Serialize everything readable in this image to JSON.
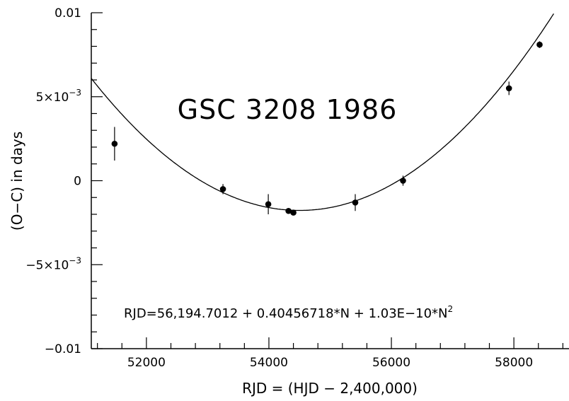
{
  "chart_data": {
    "type": "scatter",
    "annotation": "GSC 3208 1986",
    "equation": {
      "base": "RJD=56,194.7012 + 0.40456718*N + 1.03E−10*N",
      "sup": "2"
    },
    "xlabel": "RJD = (HJD − 2,400,000)",
    "ylabel": "(O−C) in days",
    "xlim": [
      51100,
      58900
    ],
    "ylim": [
      -0.01,
      0.01
    ],
    "xticks": [
      {
        "value": 52000,
        "label": "52000"
      },
      {
        "value": 54000,
        "label": "54000"
      },
      {
        "value": 56000,
        "label": "56000"
      },
      {
        "value": 58000,
        "label": "58000"
      }
    ],
    "yticks": [
      {
        "value": 0.01,
        "label": "0.01",
        "exp": ""
      },
      {
        "value": 0.005,
        "label": "5×10",
        "exp": "−3"
      },
      {
        "value": 0,
        "label": "0",
        "exp": ""
      },
      {
        "value": -0.005,
        "label": "−5×10",
        "exp": "−3"
      },
      {
        "value": -0.01,
        "label": "−0.01",
        "exp": ""
      }
    ],
    "points": [
      {
        "x": 51480,
        "y": 0.0022,
        "err": 0.001
      },
      {
        "x": 53250,
        "y": -0.0005,
        "err": 0.0003
      },
      {
        "x": 53990,
        "y": -0.0014,
        "err": 0.0006
      },
      {
        "x": 54320,
        "y": -0.0018,
        "err": 0.0
      },
      {
        "x": 54400,
        "y": -0.0019,
        "err": 0.0
      },
      {
        "x": 55410,
        "y": -0.0013,
        "err": 0.0005
      },
      {
        "x": 56190,
        "y": 0.0,
        "err": 0.0003
      },
      {
        "x": 57920,
        "y": 0.0055,
        "err": 0.0004
      },
      {
        "x": 58420,
        "y": 0.0081,
        "err": 0.0002
      }
    ],
    "fit": {
      "type": "quadratic",
      "vertex_x": 54500,
      "vertex_y": -0.00177,
      "curvature": 6.8e-10
    },
    "grid": false,
    "legend": "none"
  }
}
